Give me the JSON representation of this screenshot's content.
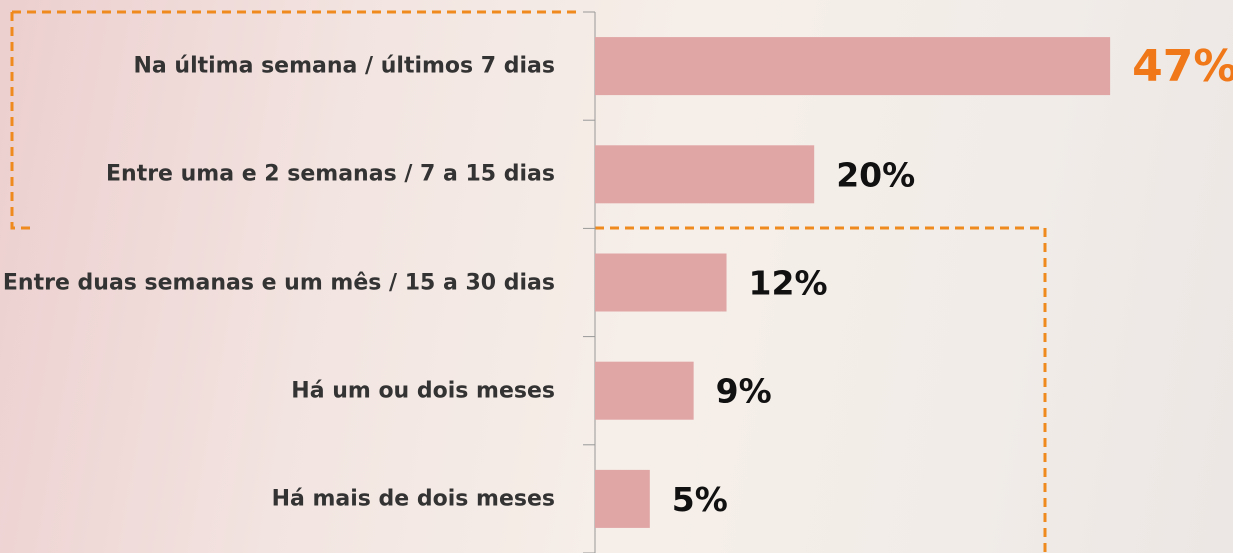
{
  "chart_data": {
    "type": "bar",
    "orientation": "horizontal",
    "categories": [
      "Na última semana / últimos 7 dias",
      "Entre uma e 2 semanas / 7 a 15 dias",
      "Entre duas semanas e um mês / 15 a 30 dias",
      "Há um ou dois meses",
      "Há mais de dois meses"
    ],
    "values": [
      47,
      20,
      12,
      9,
      5
    ],
    "value_labels": [
      "47%",
      "20%",
      "12%",
      "9%",
      "5%"
    ],
    "value_label_colors": [
      "#f07818",
      "#111111",
      "#111111",
      "#111111",
      "#111111"
    ],
    "color": "#e0a5a5"
  }
}
